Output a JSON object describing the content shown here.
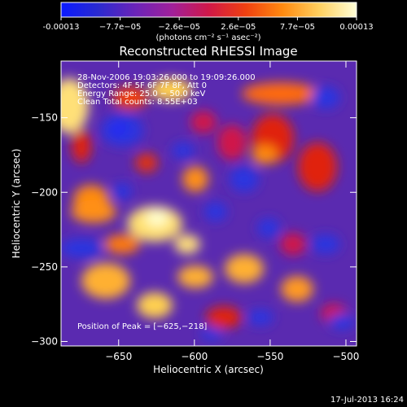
{
  "colorbar": {
    "ticks": [
      "-0.00013",
      "−7.7e−05",
      "−2.6e−05",
      "2.6e−05",
      "7.7e−05",
      "0.00013"
    ],
    "units": "(photons cm⁻² s⁻¹ asec⁻²)",
    "colors": [
      "#0a1aff",
      "#2a2ad0",
      "#6a24b8",
      "#a0209a",
      "#d01848",
      "#f04010",
      "#ff8a10",
      "#ffd060",
      "#ffffd8"
    ]
  },
  "chart_data": {
    "type": "heatmap",
    "title": "Reconstructed RHESSI Image",
    "xlabel": "Heliocentric X (arcsec)",
    "ylabel": "Heliocentric Y (arcsec)",
    "x_ticks": [
      -650,
      -600,
      -550,
      -500
    ],
    "y_ticks": [
      -150,
      -200,
      -250,
      -300
    ],
    "xlim": [
      -688,
      -493
    ],
    "ylim": [
      -303,
      -112
    ],
    "value_range": [
      -0.00013,
      0.00013
    ],
    "peak_xy": [
      -625,
      -218
    ],
    "info_lines": [
      "28-Nov-2006 19:03:26.000 to 19:09:26.000",
      "Detectors: 4F 5F 6F 7F 8F, Att 0",
      "Energy Range: 25.0 − 50.0 keV",
      "Clean     Total counts: 8.55E+03"
    ],
    "peak_label": "Position of Peak = [−625,−218]",
    "footer_date": "17-Jul-2013 16:24"
  }
}
